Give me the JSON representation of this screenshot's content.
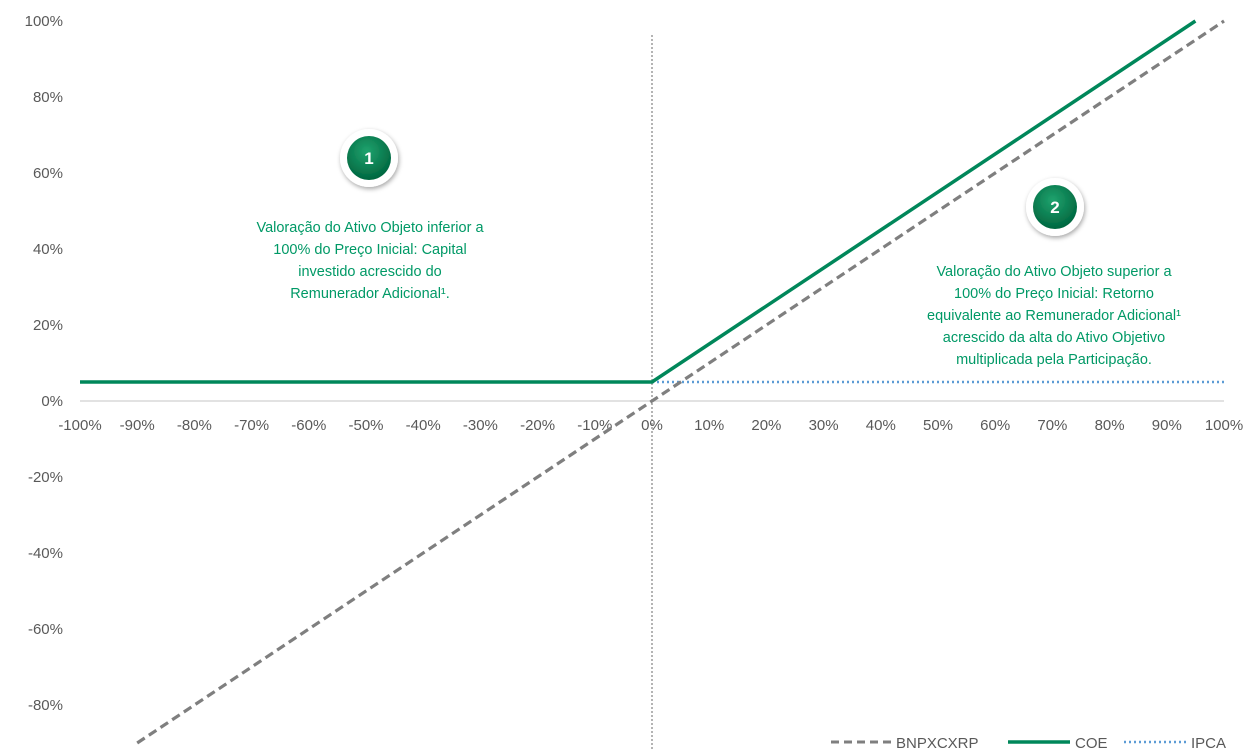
{
  "chart_data": {
    "type": "line",
    "x": [
      -100,
      -90,
      -80,
      -70,
      -60,
      -50,
      -40,
      -30,
      -20,
      -10,
      0,
      10,
      20,
      30,
      40,
      50,
      60,
      70,
      80,
      90,
      100
    ],
    "x_tick_labels": [
      "-100%",
      "-90%",
      "-80%",
      "-70%",
      "-60%",
      "-50%",
      "-40%",
      "-30%",
      "-20%",
      "-10%",
      "0%",
      "10%",
      "20%",
      "30%",
      "40%",
      "50%",
      "60%",
      "70%",
      "80%",
      "90%",
      "100%"
    ],
    "y_tick_labels": [
      "100%",
      "80%",
      "60%",
      "40%",
      "20%",
      "0%",
      "-20%",
      "-40%",
      "-60%",
      "-80%"
    ],
    "y_ticks": [
      100,
      80,
      60,
      40,
      20,
      0,
      -20,
      -40,
      -60,
      -80
    ],
    "xlim": [
      -100,
      100
    ],
    "ylim": [
      -92,
      100
    ],
    "series": [
      {
        "name": "BNPXCXRP",
        "color": "#7f7f7f",
        "style": "dashed",
        "x": [
          -90,
          100
        ],
        "y": [
          -90,
          100
        ]
      },
      {
        "name": "COE",
        "color": "#00875a",
        "style": "solid",
        "x": [
          -100,
          0,
          95
        ],
        "y": [
          5,
          5,
          100
        ]
      },
      {
        "name": "IPCA",
        "color": "#5b9bd5",
        "style": "dotted",
        "x": [
          0,
          100
        ],
        "y": [
          5,
          5
        ]
      }
    ],
    "annotations": [
      {
        "badge": "1",
        "lines": [
          "Valoração do Ativo Objeto inferior a",
          "100% do Preço Inicial: Capital",
          "investido acrescido do",
          "Remunerador Adicional¹."
        ]
      },
      {
        "badge": "2",
        "lines": [
          "Valoração do Ativo Objeto superior a",
          "100% do Preço Inicial: Retorno",
          "equivalente ao Remunerador Adicional¹",
          "acrescido da alta do Ativo Objetivo",
          "multiplicada pela Participação."
        ]
      }
    ],
    "grid": false,
    "legend": "bottom-right"
  }
}
